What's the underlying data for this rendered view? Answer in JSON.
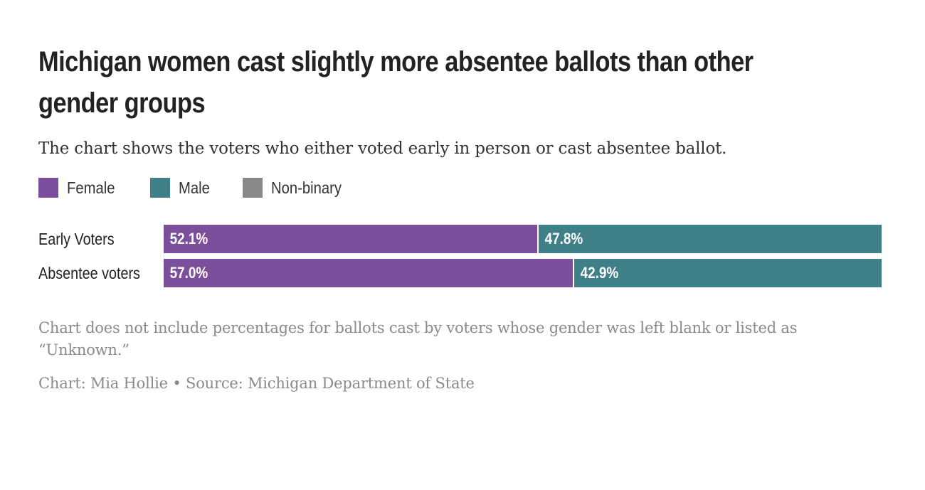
{
  "header": {
    "title": "Michigan women cast slightly more absentee ballots than other gender groups",
    "subtitle": "The chart shows the voters who either voted early in person or cast absentee ballot."
  },
  "legend": [
    {
      "label": "Female",
      "color": "#7b4f9b"
    },
    {
      "label": "Male",
      "color": "#3f7f87"
    },
    {
      "label": "Non-binary",
      "color": "#888888"
    }
  ],
  "chart_data": {
    "type": "bar",
    "orientation": "horizontal",
    "stacked": true,
    "categories": [
      "Early Voters",
      "Absentee voters"
    ],
    "series": [
      {
        "name": "Female",
        "color": "#7b4f9b",
        "values": [
          52.1,
          57.0
        ],
        "labels": [
          "52.1%",
          "57.0%"
        ]
      },
      {
        "name": "Male",
        "color": "#3f7f87",
        "values": [
          47.8,
          42.9
        ],
        "labels": [
          "47.8%",
          "42.9%"
        ]
      },
      {
        "name": "Non-binary",
        "color": "#888888",
        "values": [
          0.1,
          0.1
        ],
        "labels": [
          "",
          ""
        ]
      }
    ],
    "xlim": [
      0,
      100
    ],
    "legend_position": "top-left",
    "grid": false
  },
  "footer": {
    "note": "Chart does not include percentages for ballots cast by voters whose gender was left blank or listed as “Unknown.”",
    "credit": "Chart: Mia Hollie • Source: Michigan Department of State"
  }
}
